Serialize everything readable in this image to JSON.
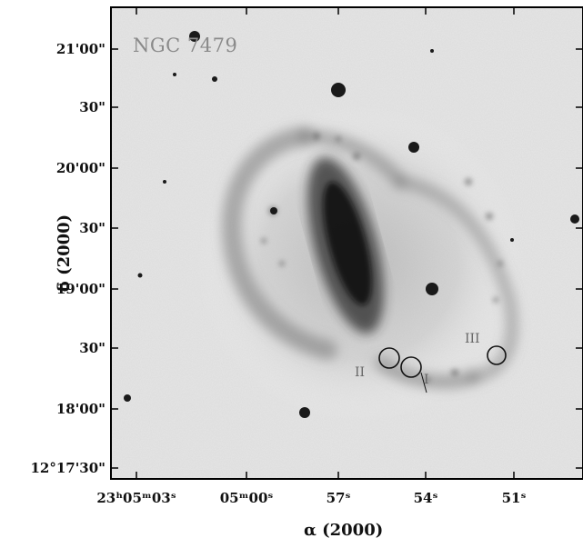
{
  "figure": {
    "object_name": "NGC 7479",
    "xlabel": "α (2000)",
    "ylabel": "δ (2000)",
    "y_ticks": [
      "21'00\"",
      "30\"",
      "20'00\"",
      "30\"",
      "19'00\"",
      "30\"",
      "18'00\"",
      "12°17'30\""
    ],
    "x_ticks": [
      "23ʰ05ᵐ03ˢ",
      "05ᵐ00ˢ",
      "57ˢ",
      "54ˢ",
      "51ˢ"
    ],
    "regions": [
      {
        "label": "II"
      },
      {
        "label": "I"
      },
      {
        "label": "III"
      }
    ]
  }
}
